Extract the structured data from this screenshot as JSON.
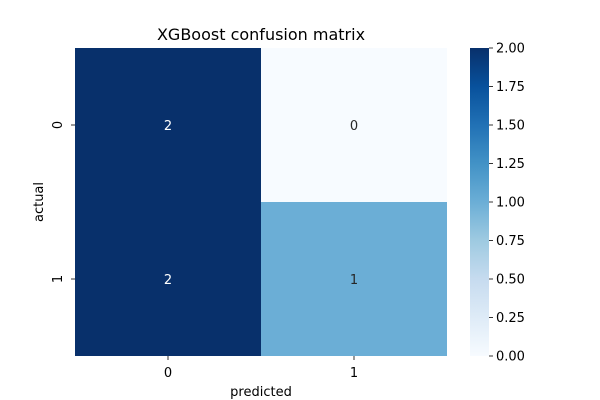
{
  "chart_data": {
    "type": "heatmap",
    "title": "XGBoost confusion matrix",
    "xlabel": "predicted",
    "ylabel": "actual",
    "x_categories": [
      "0",
      "1"
    ],
    "y_categories": [
      "0",
      "1"
    ],
    "values": [
      [
        2,
        0
      ],
      [
        2,
        1
      ]
    ],
    "annotations": [
      [
        "2",
        "0"
      ],
      [
        "2",
        "1"
      ]
    ],
    "colorbar": {
      "colormap": "Blues",
      "range": [
        0,
        2
      ],
      "ticks": [
        0,
        0.25,
        0.5,
        0.75,
        1,
        1.25,
        1.5,
        1.75,
        2
      ],
      "tick_labels": [
        "0.00",
        "0.25",
        "0.50",
        "0.75",
        "1.00",
        "1.25",
        "1.50",
        "1.75",
        "2.00"
      ]
    },
    "colors": {
      "low": "#f7fbff",
      "mid": "#6baed6",
      "high": "#08306b"
    }
  }
}
